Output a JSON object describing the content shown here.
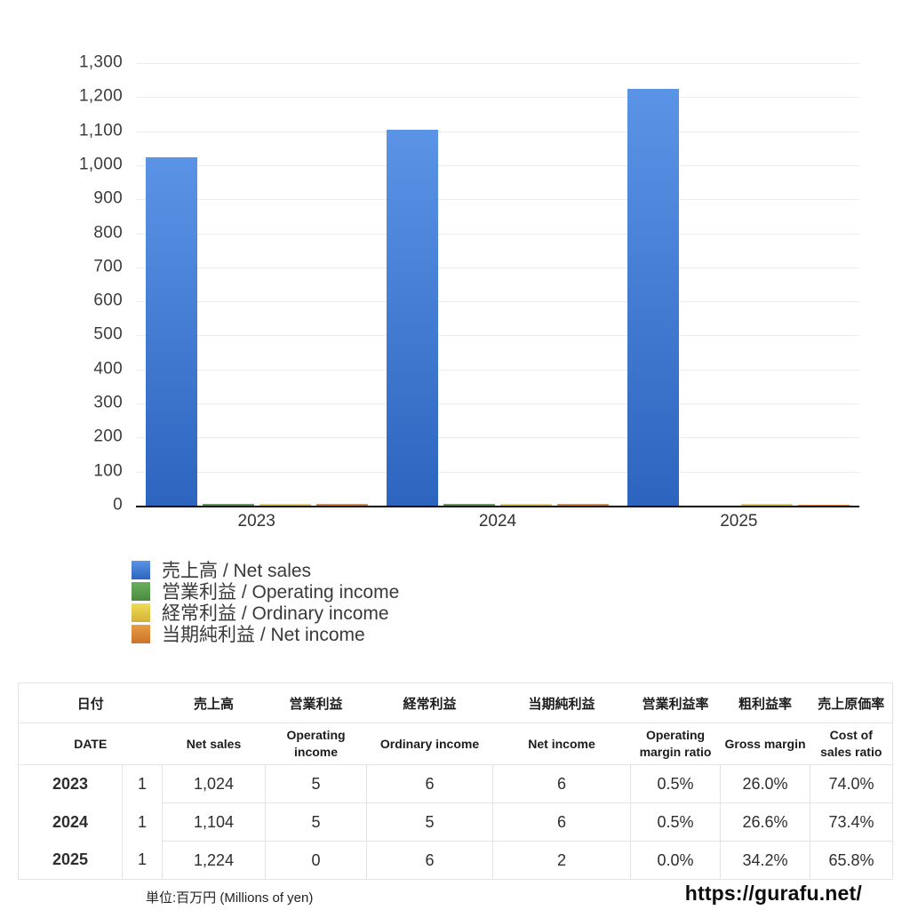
{
  "chart_data": {
    "type": "bar",
    "title": "",
    "categories": [
      "2023",
      "2024",
      "2025"
    ],
    "series": [
      {
        "name": "売上高 / Net sales",
        "values": [
          1024,
          1104,
          1224
        ],
        "color_top": "#5b94e6",
        "color_bottom": "#2d64bf"
      },
      {
        "name": "営業利益 / Operating income",
        "values": [
          5,
          5,
          0
        ],
        "color_top": "#6baf5d",
        "color_bottom": "#4a8a3f"
      },
      {
        "name": "経常利益 / Ordinary income",
        "values": [
          6,
          5,
          6
        ],
        "color_top": "#f0db55",
        "color_bottom": "#d2b238"
      },
      {
        "name": "当期純利益 / Net income",
        "values": [
          6,
          6,
          2
        ],
        "color_top": "#ea9d43",
        "color_bottom": "#c9742a"
      }
    ],
    "ylim": [
      0,
      1300
    ],
    "ytick_step": 100,
    "grid": true,
    "legend_position": "bottom-left",
    "xlabel": "",
    "ylabel": ""
  },
  "table": {
    "headers_jp": [
      "日付",
      "売上高",
      "営業利益",
      "経常利益",
      "当期純利益",
      "営業利益率",
      "粗利益率",
      "売上原価率"
    ],
    "headers_en": [
      "DATE",
      "Net sales",
      "Operating income",
      "Ordinary income",
      "Net income",
      "Operating margin ratio",
      "Gross margin",
      "Cost of sales ratio"
    ],
    "rows": [
      {
        "year": "2023",
        "month": "1",
        "net_sales": "1,024",
        "operating_income": "5",
        "ordinary_income": "6",
        "net_income": "6",
        "operating_margin_ratio": "0.5%",
        "gross_margin": "26.0%",
        "cost_of_sales_ratio": "74.0%"
      },
      {
        "year": "2024",
        "month": "1",
        "net_sales": "1,104",
        "operating_income": "5",
        "ordinary_income": "5",
        "net_income": "6",
        "operating_margin_ratio": "0.5%",
        "gross_margin": "26.6%",
        "cost_of_sales_ratio": "73.4%"
      },
      {
        "year": "2025",
        "month": "1",
        "net_sales": "1,224",
        "operating_income": "0",
        "ordinary_income": "6",
        "net_income": "2",
        "operating_margin_ratio": "0.0%",
        "gross_margin": "34.2%",
        "cost_of_sales_ratio": "65.8%"
      }
    ]
  },
  "footer": {
    "unit_note": "単位:百万円 (Millions of yen)",
    "url": "https://gurafu.net/"
  }
}
